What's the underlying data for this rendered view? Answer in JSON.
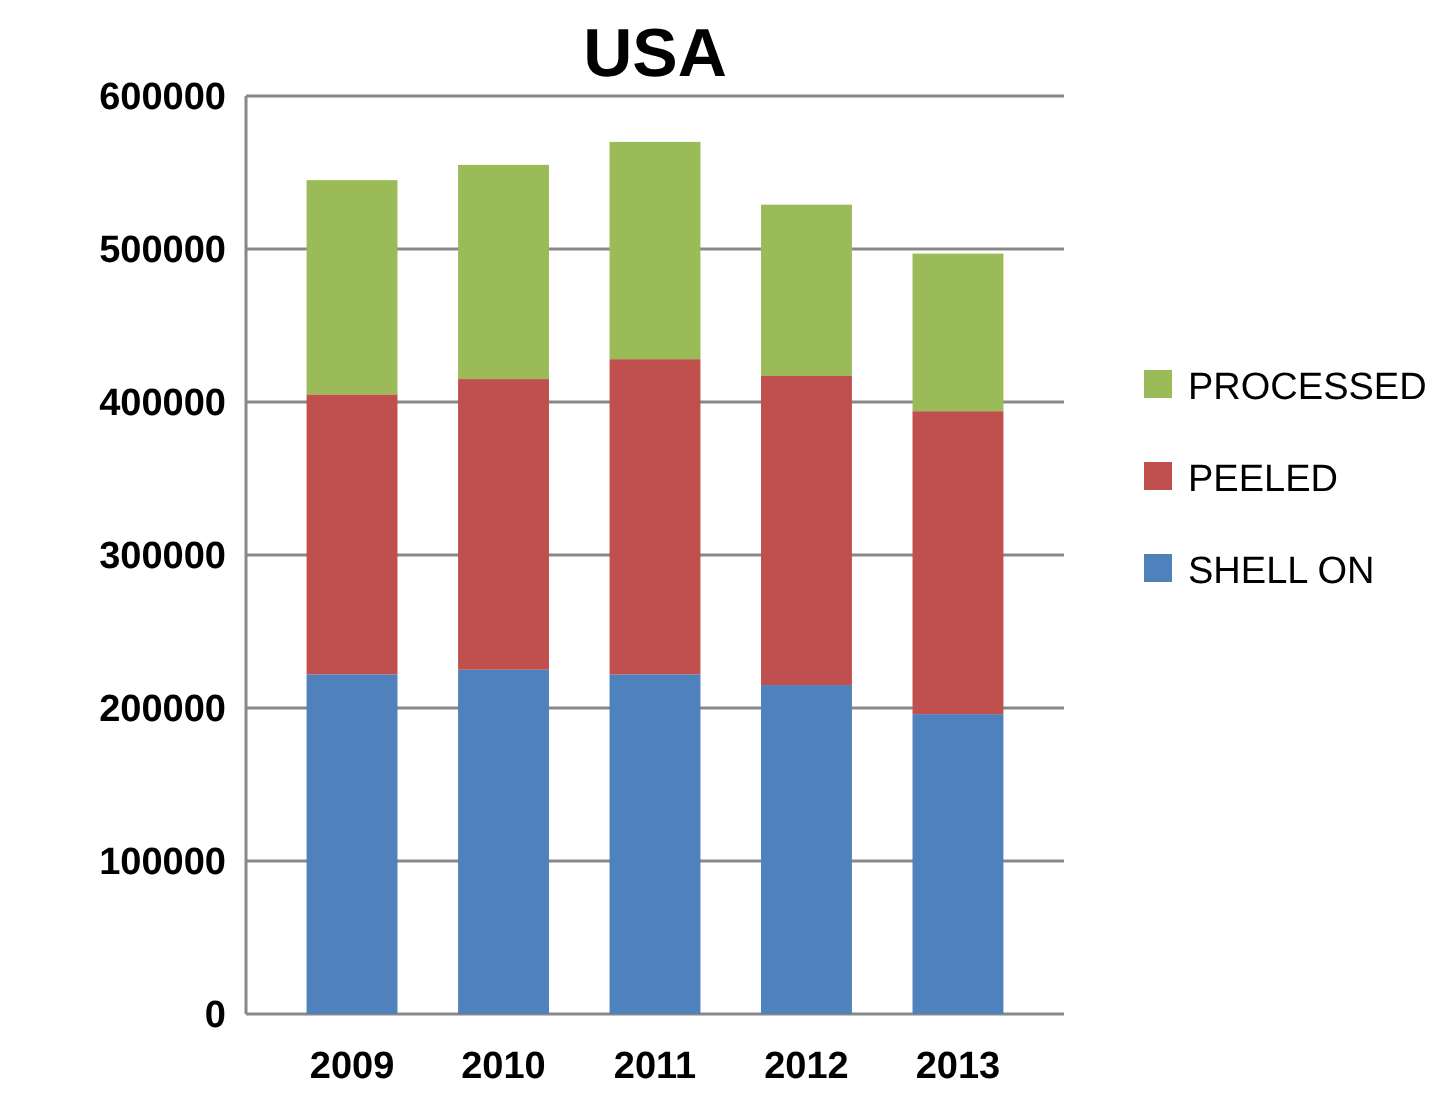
{
  "chart_data": {
    "type": "bar",
    "title": "USA",
    "stacked": true,
    "categories": [
      "2009",
      "2010",
      "2011",
      "2012",
      "2013"
    ],
    "series": [
      {
        "name": "SHELL ON",
        "color": "#4f81bd",
        "values": [
          222000,
          225000,
          222000,
          215000,
          196000
        ]
      },
      {
        "name": "PEELED",
        "color": "#c0504d",
        "values": [
          183000,
          190000,
          206000,
          202000,
          198000
        ]
      },
      {
        "name": "PROCESSED",
        "color": "#9bbb59",
        "values": [
          140000,
          140000,
          142000,
          112000,
          103000
        ]
      }
    ],
    "ylim": [
      0,
      600000
    ],
    "yticks": [
      0,
      100000,
      200000,
      300000,
      400000,
      500000,
      600000
    ],
    "grid": "y",
    "legend": "right"
  }
}
